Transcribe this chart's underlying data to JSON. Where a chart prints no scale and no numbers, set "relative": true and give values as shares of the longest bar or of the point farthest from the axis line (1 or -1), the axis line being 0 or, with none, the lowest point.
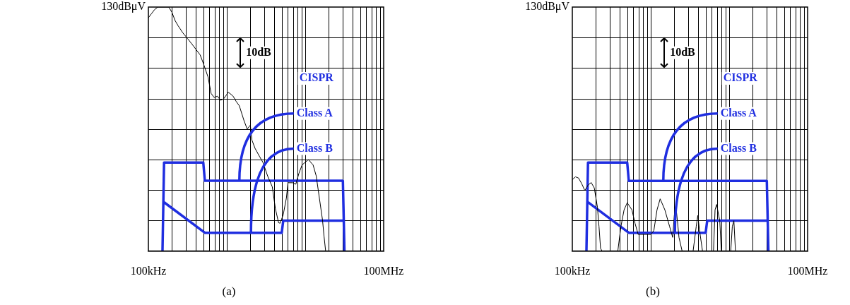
{
  "chart_data": [
    {
      "type": "line",
      "title": "(a)",
      "grid": true,
      "legend": false,
      "marker": "none",
      "relative": true,
      "categories": [
        "100kHz",
        null,
        null,
        null,
        null,
        null,
        null,
        null,
        null,
        null,
        null,
        null,
        null,
        null,
        null,
        null,
        null,
        null,
        null,
        null,
        null,
        null,
        null,
        null,
        null,
        null,
        null,
        null,
        null,
        null,
        null,
        null,
        null,
        null,
        null,
        null,
        null,
        null,
        null,
        null,
        null,
        null,
        null,
        null,
        null,
        null,
        null,
        null,
        null,
        null,
        null,
        null,
        null,
        null,
        null,
        null,
        null,
        null,
        null,
        null,
        null,
        null,
        null,
        null,
        null,
        null,
        null,
        null,
        null,
        null,
        null,
        null,
        null,
        null,
        null,
        null,
        null,
        null,
        null,
        null,
        null,
        null,
        null,
        null,
        null,
        null,
        null,
        null,
        null,
        null,
        null,
        null,
        null,
        null,
        null,
        null,
        null,
        null,
        null,
        null,
        null,
        null,
        null,
        null,
        null,
        null,
        null,
        null,
        null,
        null,
        null,
        null,
        null,
        null,
        null,
        null,
        null,
        null,
        null,
        null,
        null,
        null,
        null,
        null,
        null,
        null,
        null,
        null,
        null,
        null,
        null,
        null,
        null,
        null,
        null,
        null,
        null,
        null,
        null,
        null,
        null,
        null,
        null,
        null,
        null,
        null,
        null,
        null,
        null,
        null,
        "100MHz"
      ],
      "annotations": [
        "130dBμV",
        "10dB",
        "CISPR"
      ],
      "series": [
        {
          "color": "#000000",
          "values": [
            0.956,
            null,
            0.973,
            null,
            0.99,
            null,
            1,
            null,
            null,
            1,
            null,
            1,
            null,
            1,
            null,
            0.979,
            null,
            0.945,
            null,
            0.923,
            null,
            null,
            0.894,
            null,
            null,
            0.871,
            null,
            null,
            null,
            0.838,
            null,
            null,
            null,
            0.804,
            null,
            0.77,
            null,
            null,
            0.714,
            null,
            0.646,
            null,
            0.629,
            null,
            0.635,
            null,
            0.618,
            null,
            0.624,
            null,
            null,
            0.651,
            null,
            null,
            0.635,
            null,
            0.613,
            null,
            0.595,
            null,
            null,
            0.534,
            null,
            0.5,
            null,
            0.516,
            0.455,
            null,
            0.421,
            null,
            null,
            0.386,
            null,
            0.364,
            null,
            null,
            0.308,
            null,
            null,
            0.263,
            null,
            0.173,
            null,
            0.116,
            0.114,
            null,
            0.15,
            null,
            0.218,
            0.28,
            null,
            null,
            0.28,
            null,
            0.274,
            null,
            0.319,
            null,
            0.353,
            null,
            null,
            null,
            0.375,
            null,
            null,
            0.353,
            null,
            0.308,
            null,
            0.218,
            null,
            0.128,
            0.06,
            0,
            null,
            null,
            null,
            null,
            null,
            null,
            null,
            null,
            null,
            null,
            null,
            null,
            null,
            null,
            null,
            null,
            null,
            null,
            null,
            null,
            null,
            null,
            null,
            null,
            null,
            null,
            null,
            null,
            null,
            null,
            null,
            null,
            null,
            null,
            null,
            null,
            null
          ]
        },
        {
          "name": "Class A",
          "color": "#1f2ee0",
          "values": [
            null,
            null,
            null,
            null,
            null,
            null,
            null,
            null,
            null,
            0,
            0.363,
            null,
            null,
            null,
            null,
            null,
            null,
            null,
            null,
            null,
            null,
            null,
            null,
            null,
            null,
            null,
            null,
            null,
            null,
            null,
            null,
            null,
            null,
            null,
            null,
            0.363,
            0.288,
            null,
            null,
            null,
            null,
            null,
            null,
            null,
            null,
            null,
            null,
            null,
            null,
            null,
            null,
            null,
            null,
            null,
            null,
            null,
            null,
            null,
            null,
            null,
            null,
            null,
            null,
            null,
            null,
            null,
            null,
            null,
            null,
            null,
            null,
            null,
            null,
            null,
            null,
            null,
            null,
            null,
            null,
            null,
            null,
            null,
            null,
            null,
            null,
            null,
            null,
            null,
            null,
            null,
            null,
            null,
            null,
            null,
            null,
            null,
            null,
            null,
            null,
            null,
            null,
            null,
            null,
            null,
            null,
            null,
            null,
            null,
            null,
            null,
            null,
            null,
            null,
            null,
            null,
            null,
            null,
            null,
            null,
            null,
            null,
            null,
            null,
            null,
            0.288,
            0,
            null,
            null,
            null,
            null,
            null,
            null,
            null,
            null,
            null,
            null,
            null,
            null,
            null,
            null,
            null,
            null,
            null,
            null,
            null,
            null,
            null,
            null,
            null,
            null,
            null
          ]
        },
        {
          "name": "Class B",
          "color": "#1f2ee0",
          "values": [
            null,
            null,
            null,
            null,
            null,
            null,
            null,
            null,
            null,
            null,
            0.2,
            null,
            null,
            null,
            null,
            null,
            null,
            null,
            null,
            null,
            null,
            null,
            null,
            null,
            null,
            null,
            null,
            null,
            null,
            null,
            null,
            null,
            null,
            null,
            null,
            null,
            0.075,
            null,
            null,
            null,
            null,
            null,
            null,
            null,
            null,
            null,
            null,
            null,
            null,
            null,
            null,
            null,
            null,
            null,
            null,
            null,
            null,
            null,
            null,
            null,
            null,
            null,
            null,
            null,
            null,
            null,
            null,
            null,
            null,
            null,
            null,
            null,
            null,
            null,
            null,
            null,
            null,
            null,
            null,
            null,
            null,
            null,
            null,
            null,
            null,
            0.075,
            0.125,
            null,
            null,
            null,
            null,
            null,
            null,
            null,
            null,
            null,
            null,
            null,
            null,
            null,
            null,
            null,
            null,
            null,
            null,
            null,
            null,
            null,
            null,
            null,
            null,
            null,
            null,
            null,
            null,
            null,
            null,
            null,
            null,
            null,
            null,
            null,
            null,
            null,
            null,
            0.125,
            null,
            null,
            null,
            null,
            null,
            null,
            null,
            null,
            null,
            null,
            null,
            null,
            null,
            null,
            null,
            null,
            null,
            null,
            null,
            null,
            null,
            null,
            null,
            null,
            null
          ]
        }
      ]
    },
    {
      "type": "line",
      "title": "(b)",
      "grid": true,
      "legend": false,
      "marker": "none",
      "relative": true,
      "categories": [
        "100kHz",
        null,
        null,
        null,
        null,
        null,
        null,
        null,
        null,
        null,
        null,
        null,
        null,
        null,
        null,
        null,
        null,
        null,
        null,
        null,
        null,
        null,
        null,
        null,
        null,
        null,
        null,
        null,
        null,
        null,
        null,
        null,
        null,
        null,
        null,
        null,
        null,
        null,
        null,
        null,
        null,
        null,
        null,
        null,
        null,
        null,
        null,
        null,
        null,
        null,
        null,
        null,
        null,
        null,
        null,
        null,
        null,
        null,
        null,
        null,
        null,
        null,
        null,
        null,
        null,
        null,
        null,
        null,
        null,
        null,
        null,
        null,
        null,
        null,
        null,
        null,
        null,
        null,
        null,
        null,
        null,
        null,
        null,
        null,
        null,
        null,
        null,
        null,
        null,
        null,
        null,
        null,
        null,
        null,
        null,
        null,
        null,
        null,
        null,
        null,
        null,
        null,
        null,
        null,
        null,
        null,
        null,
        null,
        null,
        null,
        null,
        null,
        null,
        null,
        null,
        null,
        null,
        null,
        null,
        null,
        null,
        null,
        null,
        null,
        null,
        null,
        null,
        null,
        null,
        null,
        null,
        null,
        null,
        null,
        null,
        null,
        null,
        null,
        null,
        null,
        null,
        null,
        null,
        null,
        null,
        null,
        null,
        null,
        null,
        null,
        "100MHz"
      ],
      "annotations": [
        "130dBμV",
        "10dB",
        "CISPR"
      ],
      "series": [
        {
          "color": "#000000",
          "values": [
            0.808,
            null,
            0.839,
            null,
            0.825,
            null,
            0.761,
            null,
            0.684,
            null,
            0.745,
            null,
            0.775,
            null,
            0.714,
            null,
            0.497,
            0.279,
            0.03,
            0,
            null,
            null,
            null,
            null,
            null,
            null,
            null,
            null,
            null,
            0,
            null,
            0.279,
            null,
            0.466,
            null,
            0.546,
            null,
            null,
            0.466,
            null,
            0.312,
            null,
            0.188,
            null,
            null,
            null,
            0.188,
            null,
            null,
            null,
            0.188,
            null,
            0.234,
            null,
            0.466,
            null,
            0.59,
            null,
            null,
            0.466,
            null,
            null,
            0.279,
            null,
            0.154,
            0.403,
            0.513,
            0.342,
            0.154,
            null,
            0,
            null,
            null,
            null,
            null,
            null,
            null,
            0,
            null,
            0.279,
            0.403,
            0.248,
            null,
            0,
            null,
            null,
            null,
            null,
            null,
            null,
            0,
            0.466,
            0.527,
            null,
            0.342,
            0,
            null,
            null,
            null,
            null,
            null,
            0,
            0.279,
            0.342,
            0,
            null,
            null,
            null,
            null,
            null,
            null,
            null,
            null,
            null,
            null,
            null,
            null,
            null,
            null,
            null,
            null,
            null,
            null,
            null,
            null,
            null,
            null,
            null,
            null,
            null,
            null,
            null,
            null,
            null,
            null,
            null,
            null,
            null,
            null,
            null,
            null,
            null,
            null,
            null,
            null,
            null,
            null,
            null,
            null,
            null,
            null
          ]
        },
        {
          "name": "Class A",
          "color": "#1f2ee0",
          "values": [
            null,
            null,
            null,
            null,
            null,
            null,
            null,
            null,
            null,
            0,
            1,
            null,
            null,
            null,
            null,
            null,
            null,
            null,
            null,
            null,
            null,
            null,
            null,
            null,
            null,
            null,
            null,
            null,
            null,
            null,
            null,
            null,
            null,
            null,
            null,
            1,
            0.793,
            null,
            null,
            null,
            null,
            null,
            null,
            null,
            null,
            null,
            null,
            null,
            null,
            null,
            null,
            null,
            null,
            null,
            null,
            null,
            null,
            null,
            null,
            null,
            null,
            null,
            null,
            null,
            null,
            null,
            null,
            null,
            null,
            null,
            null,
            null,
            null,
            null,
            null,
            null,
            null,
            null,
            null,
            null,
            null,
            null,
            null,
            null,
            null,
            null,
            null,
            null,
            null,
            null,
            null,
            null,
            null,
            null,
            null,
            null,
            null,
            null,
            null,
            null,
            null,
            null,
            null,
            null,
            null,
            null,
            null,
            null,
            null,
            null,
            null,
            null,
            null,
            null,
            null,
            null,
            null,
            null,
            null,
            null,
            null,
            null,
            null,
            null,
            0.793,
            0,
            null,
            null,
            null,
            null,
            null,
            null,
            null,
            null,
            null,
            null,
            null,
            null,
            null,
            null,
            null,
            null,
            null,
            null,
            null,
            null,
            null,
            null,
            null,
            null,
            null
          ]
        },
        {
          "name": "Class B",
          "color": "#1f2ee0",
          "values": [
            null,
            null,
            null,
            null,
            null,
            null,
            null,
            null,
            null,
            null,
            0.552,
            null,
            null,
            null,
            null,
            null,
            null,
            null,
            null,
            null,
            null,
            null,
            null,
            null,
            null,
            null,
            null,
            null,
            null,
            null,
            null,
            null,
            null,
            null,
            null,
            null,
            0.207,
            null,
            null,
            null,
            null,
            null,
            null,
            null,
            null,
            null,
            null,
            null,
            null,
            null,
            null,
            null,
            null,
            null,
            null,
            null,
            null,
            null,
            null,
            null,
            null,
            null,
            null,
            null,
            null,
            null,
            null,
            null,
            null,
            null,
            null,
            null,
            null,
            null,
            null,
            null,
            null,
            null,
            null,
            null,
            null,
            null,
            null,
            null,
            null,
            0.207,
            0.345,
            null,
            null,
            null,
            null,
            null,
            null,
            null,
            null,
            null,
            null,
            null,
            null,
            null,
            null,
            null,
            null,
            null,
            null,
            null,
            null,
            null,
            null,
            null,
            null,
            null,
            null,
            null,
            null,
            null,
            null,
            null,
            null,
            null,
            null,
            null,
            null,
            null,
            null,
            0.345,
            null,
            null,
            null,
            null,
            null,
            null,
            null,
            null,
            null,
            null,
            null,
            null,
            null,
            null,
            null,
            null,
            null,
            null,
            null,
            null,
            null,
            null,
            null,
            null,
            null
          ]
        }
      ]
    }
  ]
}
